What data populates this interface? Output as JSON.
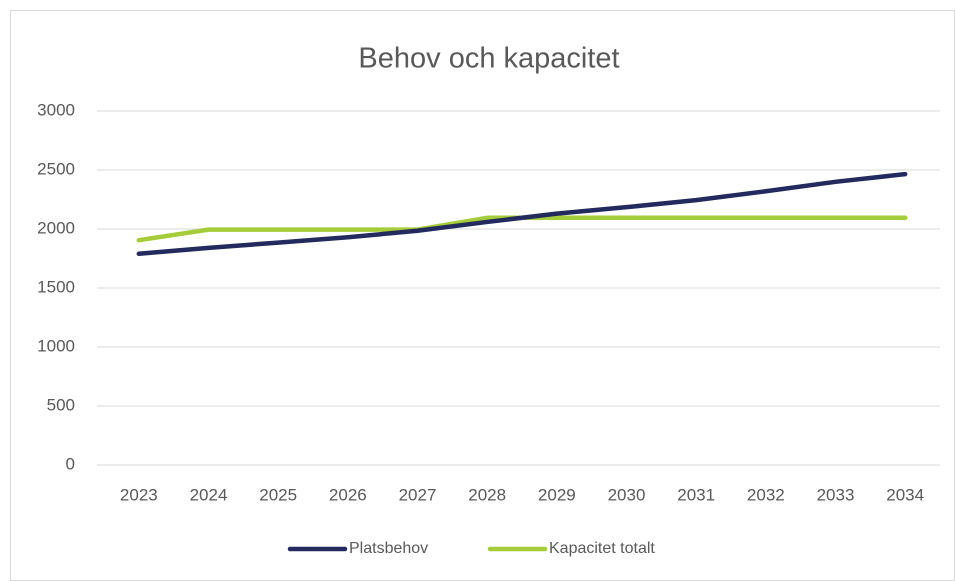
{
  "chart_data": {
    "type": "line",
    "title": "Behov och kapacitet",
    "categories": [
      "2023",
      "2024",
      "2025",
      "2026",
      "2027",
      "2028",
      "2029",
      "2030",
      "2031",
      "2032",
      "2033",
      "2034"
    ],
    "series": [
      {
        "name": "Platsbehov",
        "color": "#232a5e",
        "values": [
          1790,
          1840,
          1885,
          1930,
          1985,
          2060,
          2130,
          2185,
          2245,
          2320,
          2400,
          2465
        ]
      },
      {
        "name": "Kapacitet totalt",
        "color": "#a5cd39",
        "values": [
          1905,
          1995,
          1995,
          1995,
          1995,
          2095,
          2095,
          2095,
          2095,
          2095,
          2095,
          2095
        ]
      }
    ],
    "ylim": [
      0,
      3000
    ],
    "yticks": [
      0,
      500,
      1000,
      1500,
      2000,
      2500,
      3000
    ],
    "grid": true,
    "legend": "bottom"
  }
}
